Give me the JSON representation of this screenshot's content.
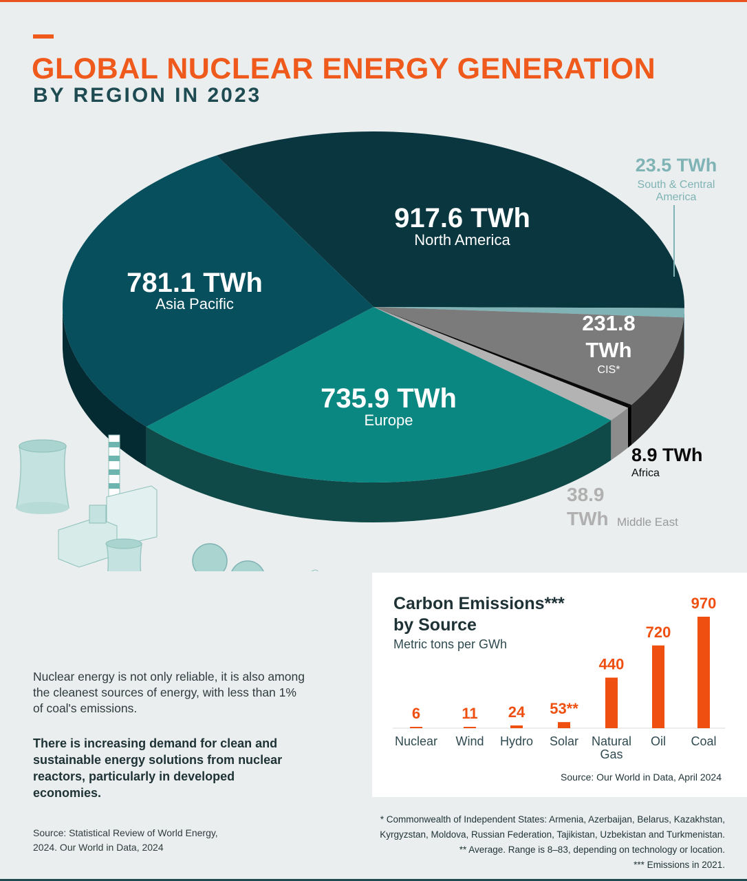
{
  "header": {
    "title": "GLOBAL NUCLEAR ENERGY GENERATION",
    "subtitle": "BY REGION IN 2023"
  },
  "chart_data": [
    {
      "type": "pie",
      "title": "GLOBAL NUCLEAR ENERGY GENERATION",
      "subtitle": "BY REGION IN 2023",
      "unit": "TWh",
      "slices": [
        {
          "label": "North America",
          "value": 917.6,
          "value_text": "917.6 TWh",
          "color": "#0a3640",
          "side": "#06252c"
        },
        {
          "label": "South & Central America",
          "value": 23.5,
          "value_text": "23.5 TWh",
          "color": "#7fb3b5",
          "side": "#4f8a8e"
        },
        {
          "label": "CIS*",
          "value": 231.8,
          "value_text": "231.8 TWh",
          "color": "#7b7b7b",
          "side": "#2e2e2e"
        },
        {
          "label": "Africa",
          "value": 8.9,
          "value_text": "8.9 TWh",
          "color": "#0a0a0a",
          "side": "#000000"
        },
        {
          "label": "Middle East",
          "value": 38.9,
          "value_text": "38.9 TWh",
          "color": "#b3b3b3",
          "side": "#8c8c8c"
        },
        {
          "label": "Europe",
          "value": 735.9,
          "value_text": "735.9 TWh",
          "color": "#0b8781",
          "side": "#0f4a48"
        },
        {
          "label": "Asia Pacific",
          "value": 781.1,
          "value_text": "781.1 TWh",
          "color": "#074f5c",
          "side": "#042a32"
        }
      ]
    },
    {
      "type": "bar",
      "title": "Carbon Emissions*** by Source",
      "ylabel": "Metric tons per GWh",
      "categories": [
        "Nuclear",
        "Wind",
        "Hydro",
        "Solar",
        "Natural Gas",
        "Oil",
        "Coal"
      ],
      "values": [
        6,
        11,
        24,
        53,
        440,
        720,
        970
      ],
      "value_labels": [
        "6",
        "11",
        "24",
        "53**",
        "440",
        "720",
        "970"
      ],
      "color": "#ef4f10",
      "source": "Source: Our World in Data, April 2024"
    }
  ],
  "emissions": {
    "title_line1": "Carbon Emissions***",
    "title_line2": "by Source",
    "subtitle": "Metric tons per GWh",
    "source": "Source: Our World in Data, April 2024"
  },
  "text": {
    "para1": "Nuclear energy is not only reliable, it is also among the cleanest sources of energy, with less than 1% of coal's emissions.",
    "para2": "There is increasing demand for clean and sustainable energy solutions from nuclear reactors, particularly in developed economies.",
    "source": "Source: Statistical Review of World Energy, 2024. Our World in Data, 2024"
  },
  "footnotes": {
    "line1": "* Commonwealth of Independent States: Armenia, Azerbaijan, Belarus, Kazakhstan,",
    "line2": "Kyrgyzstan, Moldova, Russian Federation, Tajikistan, Uzbekistan and Turkmenistan.",
    "line3": "** Average. Range is 8–83, depending on technology or location.",
    "line4": "*** Emissions in 2021."
  },
  "colors": {
    "accent": "#ef5a1c",
    "dark_teal": "#1e4a52",
    "background": "#ebeeee"
  }
}
